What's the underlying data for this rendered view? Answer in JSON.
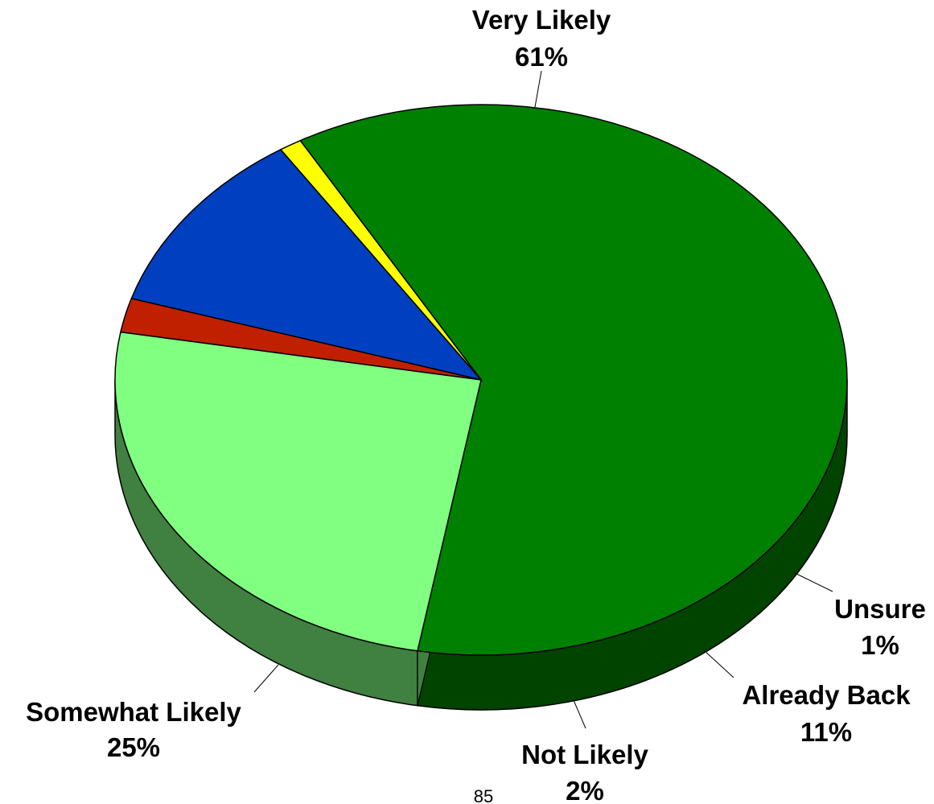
{
  "chart_data": {
    "type": "pie",
    "style": "3d",
    "slices": [
      {
        "label": "Very Likely",
        "value": 61,
        "value_label": "61%",
        "color": "#008000",
        "side_color": "#004400"
      },
      {
        "label": "Unsure",
        "value": 1,
        "value_label": "1%",
        "color": "#ffff00",
        "side_color": "#808000"
      },
      {
        "label": "Already Back",
        "value": 11,
        "value_label": "11%",
        "color": "#0040c0",
        "side_color": "#002060"
      },
      {
        "label": "Not Likely",
        "value": 2,
        "value_label": "2%",
        "color": "#c02000",
        "side_color": "#601000"
      },
      {
        "label": "Somewhat Likely",
        "value": 25,
        "value_label": "25%",
        "color": "#80ff80",
        "side_color": "#408040"
      }
    ]
  },
  "page_number": "85"
}
